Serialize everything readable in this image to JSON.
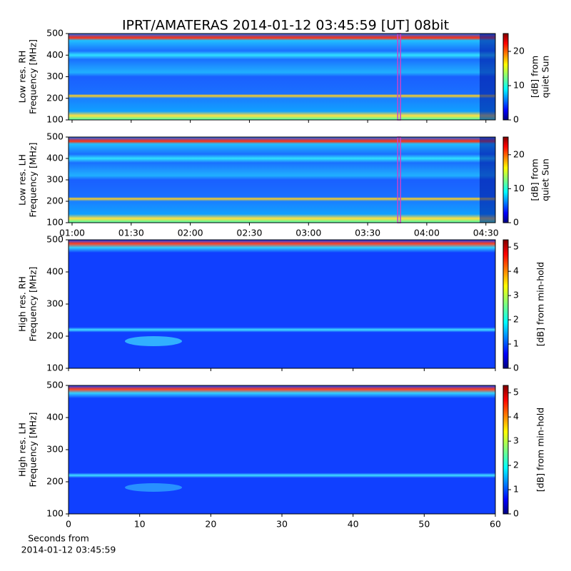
{
  "title": "IPRT/AMATERAS 2014-01-12 03:45:59 [UT]   08bit",
  "xlabel": [
    "Seconds from",
    "2014-01-12 03:45:59"
  ],
  "chart_data": [
    {
      "type": "spectrogram",
      "ylabel": [
        "Low res. RH",
        "Frequency [MHz]"
      ],
      "ylim": [
        100,
        500
      ],
      "yticks": [
        100,
        200,
        300,
        400,
        500
      ],
      "xlim": [
        0.97,
        4.58
      ],
      "xticks": [
        1,
        1.5,
        2,
        2.5,
        3,
        3.5,
        4,
        4.5
      ],
      "cursor_x": 3.766,
      "cursor_color": "#cc44cc",
      "colorbar": {
        "label": [
          "[dB] from",
          "quiet Sun"
        ],
        "lim": [
          0,
          25.2
        ],
        "ticks": [
          0,
          10,
          20
        ]
      }
    },
    {
      "type": "spectrogram",
      "ylabel": [
        "Low res. LH",
        "Frequency [MHz]"
      ],
      "ylim": [
        100,
        500
      ],
      "yticks": [
        100,
        200,
        300,
        400,
        500
      ],
      "xlim": [
        0.97,
        4.58
      ],
      "xticks": [
        {
          "value": 1,
          "label": "01:00"
        },
        {
          "value": 1.5,
          "label": "01:30"
        },
        {
          "value": 2,
          "label": "02:00"
        },
        {
          "value": 2.5,
          "label": "02:30"
        },
        {
          "value": 3,
          "label": "03:00"
        },
        {
          "value": 3.5,
          "label": "03:30"
        },
        {
          "value": 4,
          "label": "04:00"
        },
        {
          "value": 4.5,
          "label": "04:30"
        }
      ],
      "cursor_x": 3.766,
      "cursor_color": "#cc44cc",
      "colorbar": {
        "label": [
          "[dB] from",
          "quiet Sun"
        ],
        "lim": [
          0,
          25.2
        ],
        "ticks": [
          0,
          10,
          20
        ]
      }
    },
    {
      "type": "spectrogram",
      "ylabel": [
        "High res. RH",
        "Frequency [MHz]"
      ],
      "ylim": [
        100,
        500
      ],
      "yticks": [
        100,
        200,
        300,
        400,
        500
      ],
      "xlim": [
        0,
        60
      ],
      "xticks": [
        0,
        10,
        20,
        30,
        40,
        50,
        60
      ],
      "colorbar": {
        "label": [
          "[dB] from min-hold"
        ],
        "lim": [
          0,
          5.3
        ],
        "ticks": [
          0,
          1,
          2,
          3,
          4,
          5
        ]
      }
    },
    {
      "type": "spectrogram",
      "ylabel": [
        "High res. LH",
        "Frequency [MHz]"
      ],
      "ylim": [
        100,
        500
      ],
      "yticks": [
        100,
        200,
        300,
        400,
        500
      ],
      "xlim": [
        0,
        60
      ],
      "xticks": [
        0,
        10,
        20,
        30,
        40,
        50,
        60
      ],
      "xticklabels": true,
      "colorbar": {
        "label": [
          "[dB] from min-hold"
        ],
        "lim": [
          0,
          5.3
        ],
        "ticks": [
          0,
          1,
          2,
          3,
          4,
          5
        ]
      }
    }
  ]
}
